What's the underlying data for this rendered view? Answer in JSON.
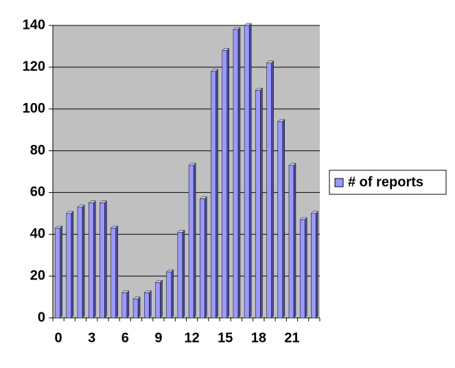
{
  "chart_data": {
    "type": "bar",
    "categories": [
      "0",
      null,
      null,
      "3",
      null,
      null,
      "6",
      null,
      null,
      "9",
      null,
      null,
      "12",
      null,
      null,
      "15",
      null,
      null,
      "18",
      null,
      null,
      "21",
      null,
      null
    ],
    "series": [
      {
        "name": "# of reports",
        "color": "#9999ff",
        "values": [
          43,
          50,
          53,
          55,
          55,
          43,
          12,
          9,
          12,
          17,
          22,
          41,
          73,
          57,
          118,
          128,
          138,
          140,
          109,
          122,
          94,
          73,
          47,
          50
        ]
      }
    ],
    "ylim": [
      0,
      140
    ],
    "yticks": [
      0,
      20,
      40,
      60,
      80,
      100,
      120,
      140
    ],
    "grid": true,
    "legend": "right"
  }
}
